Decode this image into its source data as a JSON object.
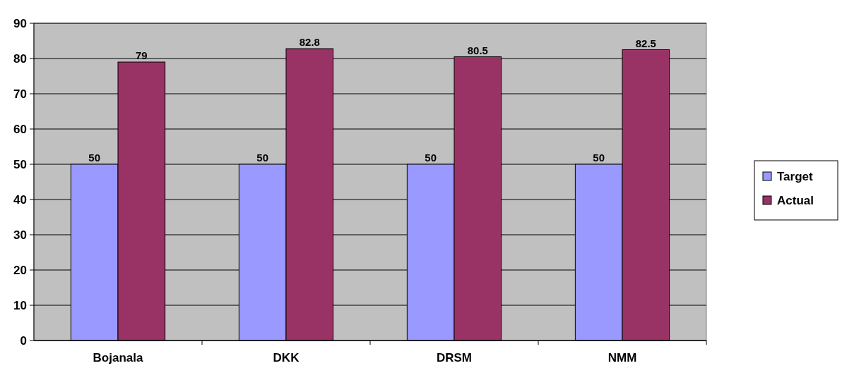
{
  "chart_data": {
    "type": "bar",
    "categories": [
      "Bojanala",
      "DKK",
      "DRSM",
      "NMM"
    ],
    "series": [
      {
        "name": "Target",
        "color": "#9999ff",
        "values": [
          50,
          50,
          50,
          50
        ]
      },
      {
        "name": "Actual",
        "color": "#993366",
        "values": [
          79,
          82.8,
          80.5,
          82.5
        ]
      }
    ],
    "ylim": [
      0,
      90
    ],
    "yticks": [
      0,
      10,
      20,
      30,
      40,
      50,
      60,
      70,
      80,
      90
    ],
    "grid": "y",
    "legend": "right",
    "data_labels": true
  }
}
